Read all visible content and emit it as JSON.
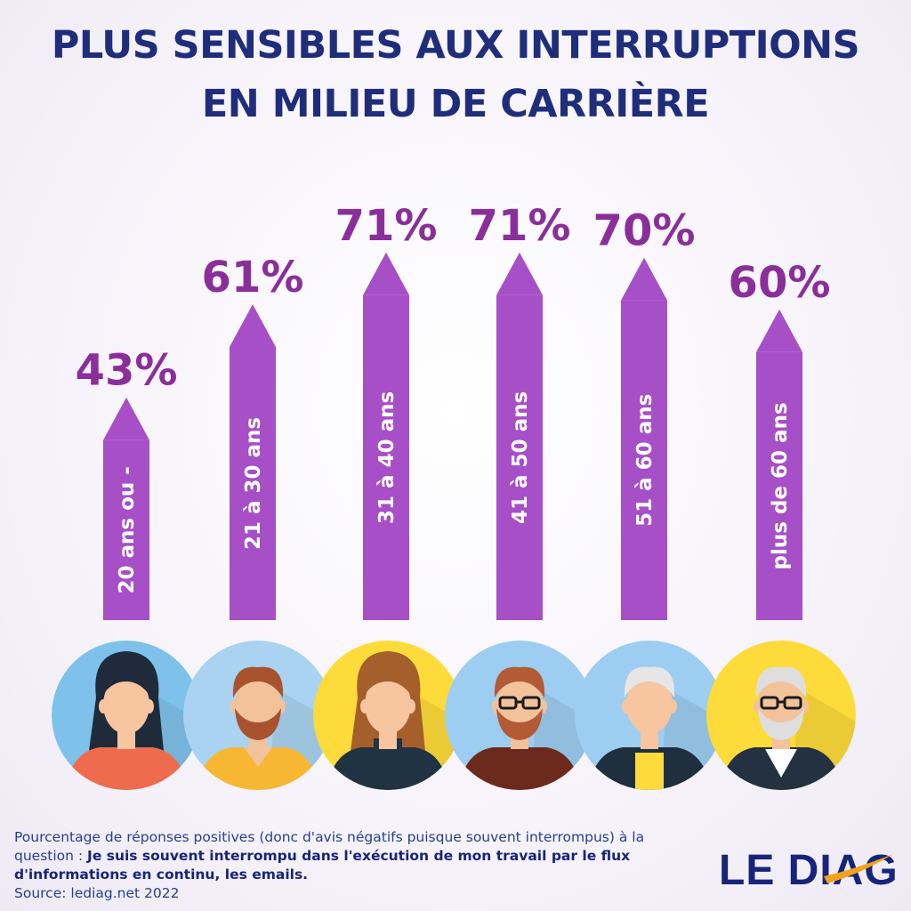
{
  "title": {
    "line1": "PLUS SENSIBLES AUX INTERRUPTIONS",
    "line2": "EN MILIEU DE CARRIÈRE"
  },
  "colors": {
    "bar": "#a64fc6",
    "value_text": "#8a2f9a",
    "title": "#1f2d7b",
    "logo_blue": "#17247a",
    "logo_swoosh": "#f2a21b"
  },
  "chart_data": {
    "type": "bar",
    "categories": [
      "20 ans ou -",
      "21 à 30 ans",
      "31 à 40 ans",
      "41 à 50 ans",
      "51 à 60 ans",
      "plus de 60 ans"
    ],
    "values": [
      43,
      61,
      71,
      71,
      70,
      60
    ],
    "value_labels": [
      "43%",
      "61%",
      "71%",
      "71%",
      "70%",
      "60%"
    ],
    "title": "PLUS SENSIBLES AUX INTERRUPTIONS EN MILIEU DE CARRIÈRE",
    "xlabel": "",
    "ylabel": "",
    "grid": false,
    "legend": "none"
  },
  "avatars": [
    {
      "name": "woman-dark-hair-avatar",
      "bg": "#7ec1ea",
      "hair": "#1f2b3a",
      "skin": "#f7c59f",
      "shirt": "#ee6b4d",
      "collar": "none"
    },
    {
      "name": "bearded-man-avatar",
      "bg": "#a9d3f0",
      "hair": "#a9532e",
      "skin": "#f2c29b",
      "shirt": "#f7b733",
      "collar": "v"
    },
    {
      "name": "woman-long-hair-avatar",
      "bg": "#fddb3a",
      "hair": "#a55f2a",
      "skin": "#f7c59f",
      "shirt": "#1f3343",
      "collar": "turtle"
    },
    {
      "name": "man-glasses-beard-avatar",
      "bg": "#9dcdf0",
      "hair": "#b35b35",
      "skin": "#f2c29b",
      "shirt": "#6b2a1c",
      "collar": "none"
    },
    {
      "name": "older-woman-avatar",
      "bg": "#9dcdf0",
      "hair": "#e6e6e6",
      "skin": "#f7c59f",
      "shirt": "#1f2f3d",
      "collar": "yellow"
    },
    {
      "name": "older-man-glasses-avatar",
      "bg": "#fddb3a",
      "hair": "#dedede",
      "skin": "#f2c29b",
      "shirt": "#233140",
      "collar": "white"
    }
  ],
  "footnote": {
    "line1": "Pourcentage de réponses positives (donc d'avis négatifs puisque souvent interrompus) à la",
    "lead": "question : ",
    "question": "Je suis souvent interrompu dans l'exécution de mon travail par le flux d'informations en continu, les emails.",
    "source": "Source: lediag.net 2022"
  },
  "logo": {
    "text": "LE DIAG"
  }
}
